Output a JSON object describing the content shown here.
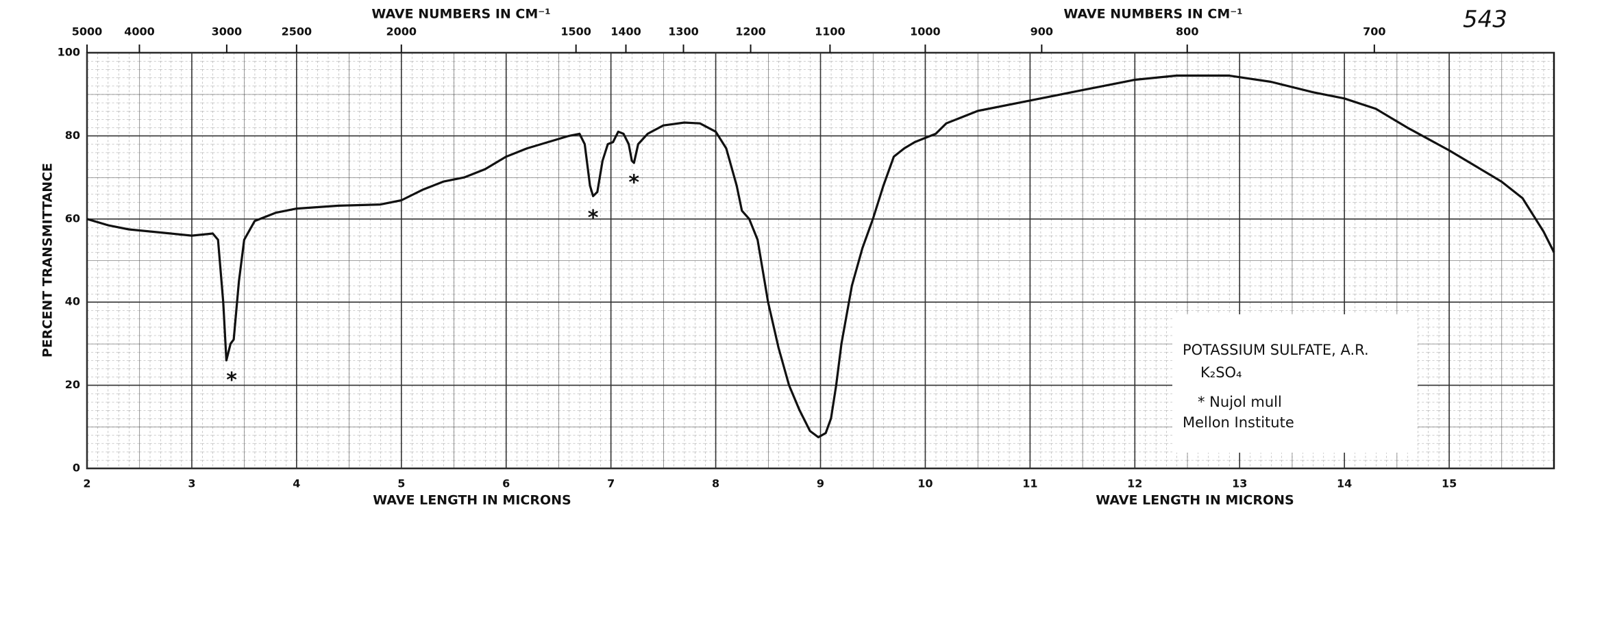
{
  "chart_data": {
    "type": "line",
    "title_top": [
      "WAVE NUMBERS IN CM⁻¹",
      "WAVE NUMBERS IN CM⁻¹"
    ],
    "xlabel": [
      "WAVE LENGTH IN MICRONS",
      "WAVE LENGTH IN MICRONS"
    ],
    "ylabel": "PERCENT TRANSMITTANCE",
    "page_number": "543",
    "color": "#111111",
    "grid": true,
    "xlim": [
      2,
      16
    ],
    "xticks": [
      2,
      3,
      4,
      5,
      6,
      7,
      8,
      9,
      10,
      11,
      12,
      13,
      14,
      15
    ],
    "ylim": [
      0,
      100
    ],
    "yticks": [
      0,
      20,
      40,
      60,
      80,
      100
    ],
    "x2scale": "reciprocal",
    "x2lim": [
      5000,
      625
    ],
    "x2ticks": [
      5000,
      4000,
      3000,
      2500,
      2000,
      1500,
      1400,
      1300,
      1200,
      1100,
      1000,
      900,
      800,
      700
    ],
    "x": [
      2.0,
      2.2,
      2.4,
      2.6,
      2.8,
      3.0,
      3.2,
      3.25,
      3.3,
      3.33,
      3.37,
      3.4,
      3.45,
      3.5,
      3.6,
      3.8,
      4.0,
      4.4,
      4.8,
      5.0,
      5.2,
      5.4,
      5.6,
      5.8,
      6.0,
      6.2,
      6.4,
      6.6,
      6.7,
      6.75,
      6.8,
      6.83,
      6.87,
      6.92,
      6.97,
      7.02,
      7.07,
      7.12,
      7.17,
      7.2,
      7.22,
      7.26,
      7.35,
      7.5,
      7.7,
      7.85,
      8.0,
      8.1,
      8.2,
      8.25,
      8.32,
      8.4,
      8.5,
      8.6,
      8.7,
      8.8,
      8.9,
      8.98,
      9.05,
      9.1,
      9.15,
      9.2,
      9.3,
      9.4,
      9.5,
      9.6,
      9.7,
      9.8,
      9.9,
      10.0,
      10.1,
      10.2,
      10.5,
      11.0,
      11.5,
      12.0,
      12.4,
      12.9,
      13.3,
      13.7,
      14.0,
      14.3,
      14.6,
      15.0,
      15.5,
      15.7,
      15.9,
      16.0
    ],
    "values": [
      60,
      58.5,
      57.5,
      57,
      56.5,
      56,
      56.5,
      55,
      40,
      26,
      30,
      31,
      45,
      55,
      59.5,
      61.5,
      62.5,
      63.2,
      63.5,
      64.5,
      67,
      69,
      70,
      72,
      75,
      77,
      78.5,
      80,
      80.5,
      78,
      68,
      65.5,
      66.5,
      74,
      78,
      78.5,
      81,
      80.5,
      78,
      74,
      73.5,
      78,
      80.5,
      82.5,
      83.2,
      83,
      81,
      77,
      68,
      62,
      60,
      55,
      40,
      29,
      20,
      14,
      9,
      7.5,
      8.5,
      12,
      20,
      30,
      44,
      53,
      60,
      68,
      75,
      77,
      78.5,
      79.5,
      80.5,
      83,
      86,
      88.5,
      91,
      93.5,
      94.5,
      94.5,
      93,
      90.5,
      89,
      86.5,
      82,
      76.5,
      69,
      65,
      57,
      52
    ],
    "markers": [
      {
        "text": "*",
        "x": 3.38,
        "y": 22
      },
      {
        "text": "*",
        "x": 6.83,
        "y": 61
      },
      {
        "text": "*",
        "x": 7.22,
        "y": 69.5
      }
    ],
    "legend_box": [
      "POTASSIUM SULFATE, A.R.",
      "K₂SO₄",
      "* Nujol mull",
      "Mellon Institute"
    ]
  }
}
